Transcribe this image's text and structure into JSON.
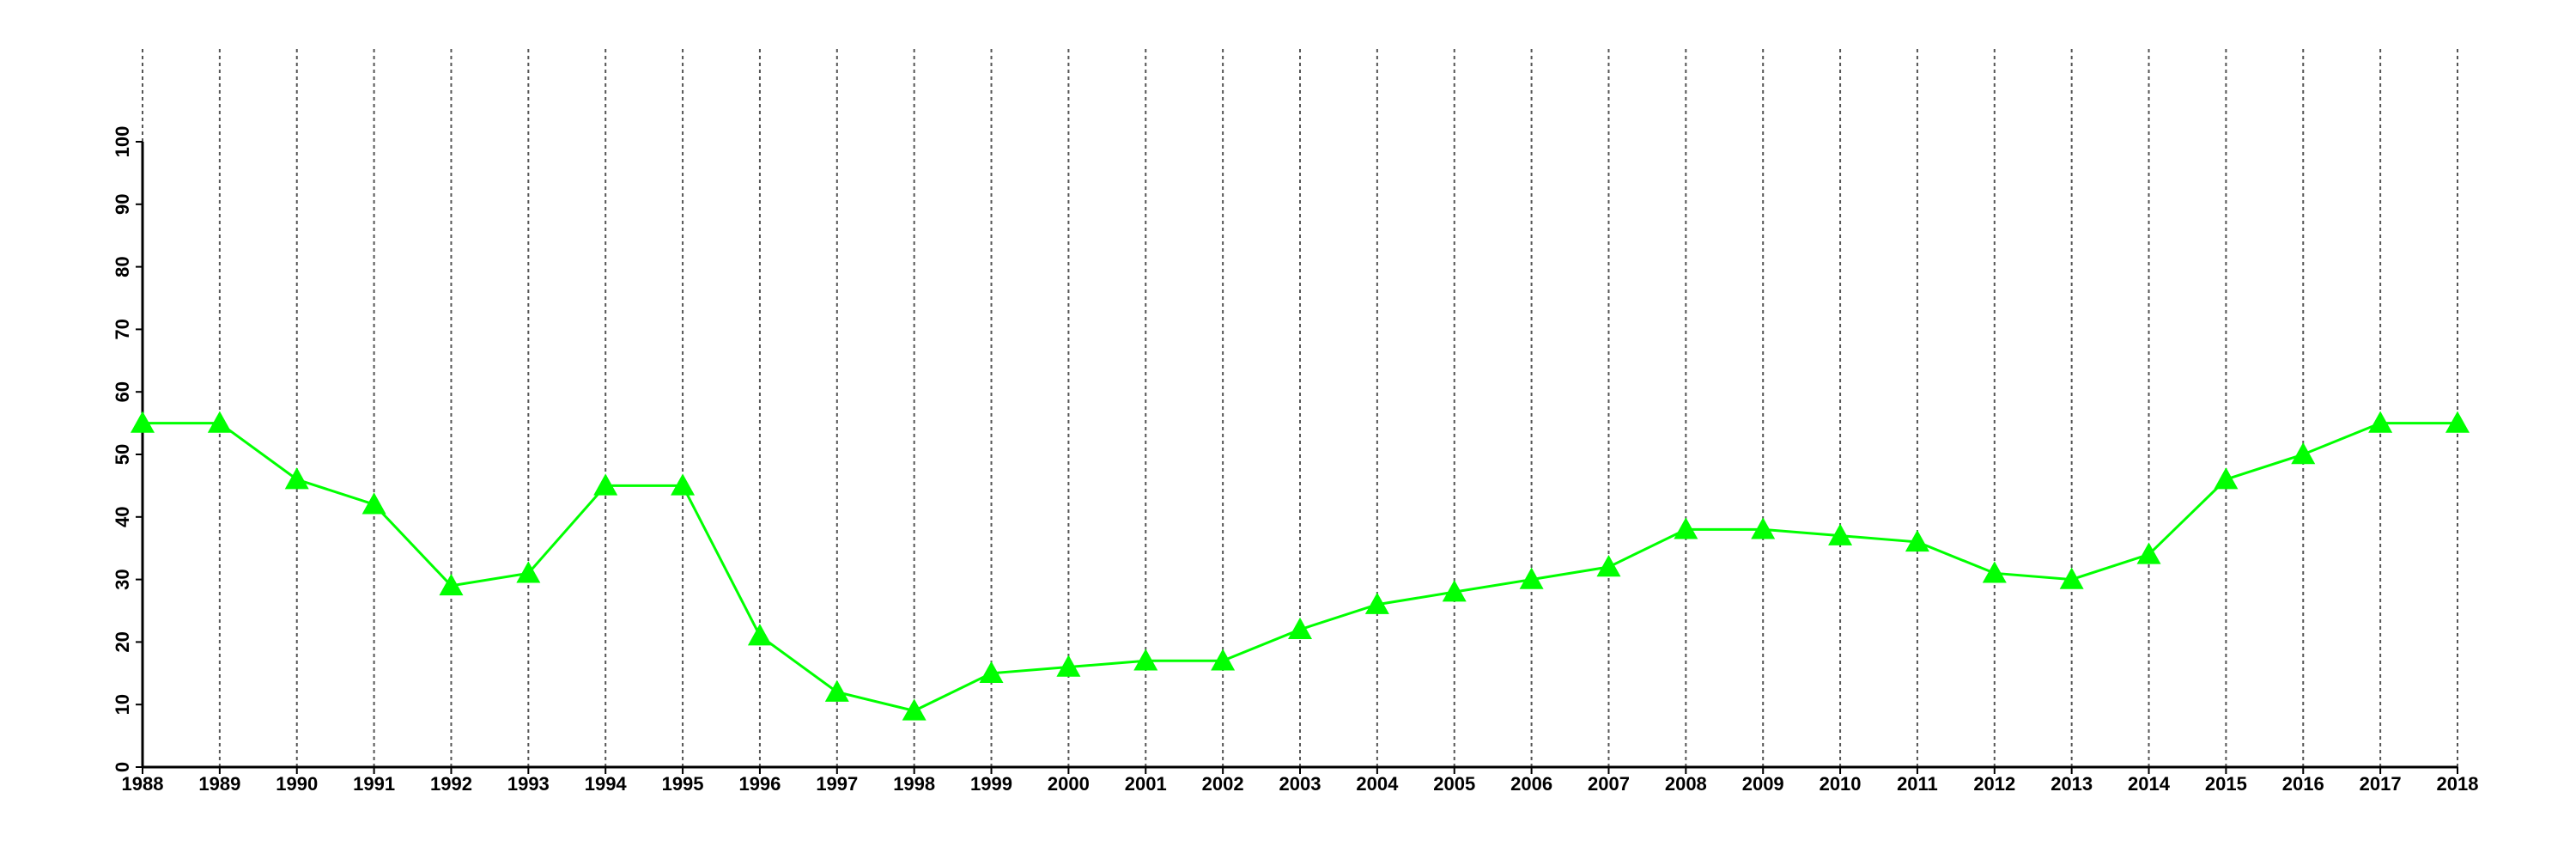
{
  "chart_data": {
    "type": "line",
    "x": [
      1988,
      1989,
      1990,
      1991,
      1992,
      1993,
      1994,
      1995,
      1996,
      1997,
      1998,
      1999,
      2000,
      2001,
      2002,
      2003,
      2004,
      2005,
      2006,
      2007,
      2008,
      2009,
      2010,
      2011,
      2012,
      2013,
      2014,
      2015,
      2016,
      2017,
      2018
    ],
    "series": [
      {
        "color": "#00ff00",
        "marker": "triangle",
        "values": [
          55,
          55,
          46,
          42,
          29,
          31,
          45,
          45,
          21,
          12,
          9,
          15,
          16,
          17,
          17,
          22,
          26,
          28,
          30,
          32,
          38,
          38,
          37,
          36,
          31,
          30,
          34,
          46,
          50,
          55,
          55
        ]
      }
    ],
    "xlim": [
      1988,
      2018
    ],
    "xticks": [
      1988,
      1989,
      1990,
      1991,
      1992,
      1993,
      1994,
      1995,
      1996,
      1997,
      1998,
      1999,
      2000,
      2001,
      2002,
      2003,
      2004,
      2005,
      2006,
      2007,
      2008,
      2009,
      2010,
      2011,
      2012,
      2013,
      2014,
      2015,
      2016,
      2017,
      2018
    ],
    "ylim": [
      0,
      100
    ],
    "yticks": [
      0,
      10,
      20,
      30,
      40,
      50,
      60,
      70,
      80,
      90,
      100
    ],
    "grid": "x"
  }
}
